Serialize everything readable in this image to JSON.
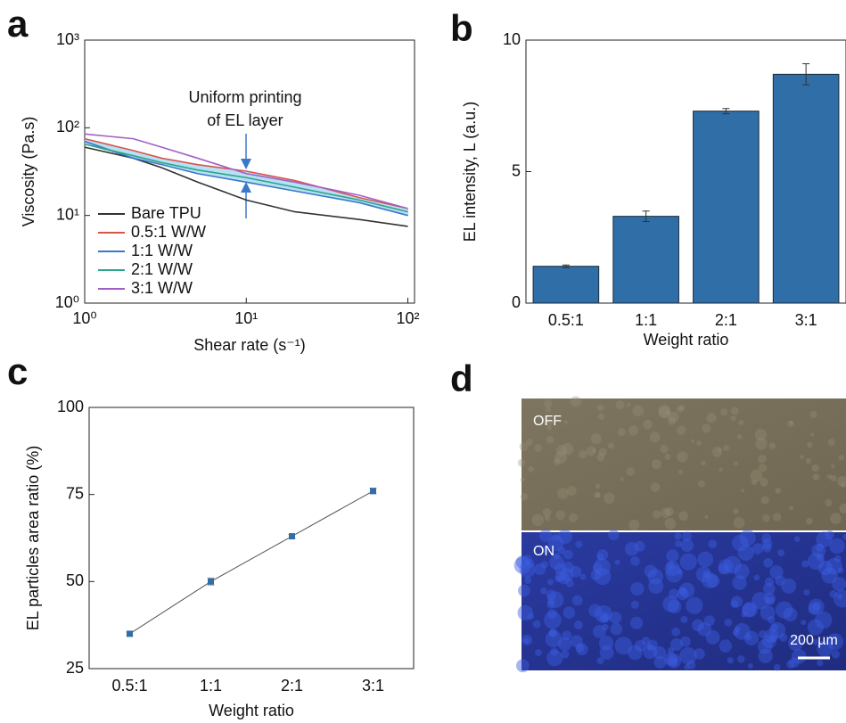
{
  "chart_data": [
    {
      "panel": "a",
      "type": "line",
      "xlabel": "Shear rate (s⁻¹)",
      "ylabel": "Viscosity (Pa.s)",
      "annotation": [
        "Uniform printing",
        "of EL layer"
      ],
      "xlog": true,
      "ylog": true,
      "x": [
        1,
        2,
        3,
        5,
        10,
        20,
        50,
        100
      ],
      "xlim": [
        1,
        110
      ],
      "ylim": [
        1,
        1000
      ],
      "xticks": [
        {
          "value": 1,
          "label": "10⁰"
        },
        {
          "value": 10,
          "label": "10¹"
        },
        {
          "value": 100,
          "label": "10²"
        }
      ],
      "yticks": [
        {
          "value": 1,
          "label": "10⁰"
        },
        {
          "value": 10,
          "label": "10¹"
        },
        {
          "value": 100,
          "label": "10²"
        },
        {
          "value": 1000,
          "label": "10³"
        }
      ],
      "series": [
        {
          "name": "Bare TPU",
          "color": "#333333",
          "values": [
            60,
            45,
            35,
            24,
            15,
            11,
            9,
            7.5
          ]
        },
        {
          "name": "0.5:1 W/W",
          "color": "#d9534f",
          "values": [
            75,
            55,
            45,
            38,
            32,
            25,
            16,
            12
          ]
        },
        {
          "name": "1:1 W/W",
          "color": "#3a78c9",
          "values": [
            70,
            45,
            38,
            30,
            24,
            19,
            14,
            10
          ]
        },
        {
          "name": "2:1 W/W",
          "color": "#2aa58a",
          "values": [
            65,
            48,
            40,
            33,
            27,
            21,
            15,
            11
          ]
        },
        {
          "name": "3:1 W/W",
          "color": "#a25fc8",
          "values": [
            85,
            75,
            60,
            45,
            30,
            24,
            17,
            12
          ]
        }
      ]
    },
    {
      "panel": "b",
      "type": "bar",
      "xlabel": "Weight ratio",
      "ylabel": "EL intensity, L (a.u.)",
      "categories": [
        "0.5:1",
        "1:1",
        "2:1",
        "3:1"
      ],
      "values": [
        1.4,
        3.3,
        7.3,
        8.7
      ],
      "errors": [
        0.05,
        0.2,
        0.1,
        0.4
      ],
      "color": "#2f6ea6",
      "ylim": [
        0,
        10
      ],
      "yticks": [
        0,
        5,
        10
      ]
    },
    {
      "panel": "c",
      "type": "line",
      "xlabel": "Weight ratio",
      "ylabel": "EL particles area ratio (%)",
      "categories": [
        "0.5:1",
        "1:1",
        "2:1",
        "3:1"
      ],
      "values": [
        35,
        50,
        63,
        76
      ],
      "errors": [
        0.5,
        1,
        0.5,
        0.8
      ],
      "color": "#2f6ea6",
      "ylim": [
        25,
        100
      ],
      "yticks": [
        25,
        50,
        75,
        100
      ]
    }
  ],
  "image_panel": {
    "panel": "d",
    "top_label": "OFF",
    "bottom_label": "ON",
    "scale_bar": "200 µm"
  }
}
